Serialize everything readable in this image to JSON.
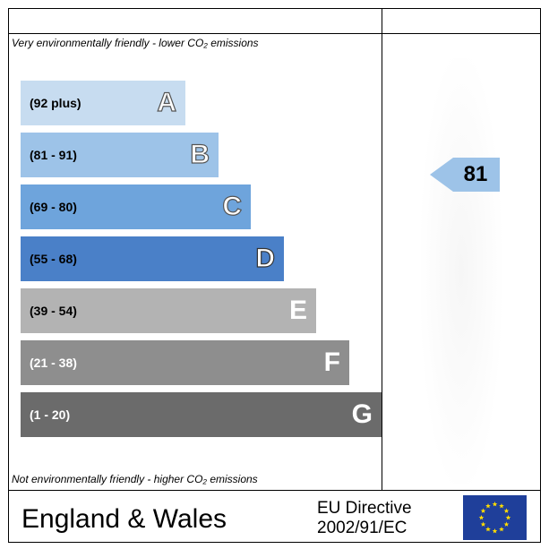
{
  "chart_data": {
    "type": "bar",
    "title": "",
    "top_caption": "Very environmentally friendly - lower CO₂ emissions",
    "bottom_caption": "Not environmentally friendly - higher CO₂ emissions",
    "bands": [
      {
        "letter": "A",
        "range": "(92 plus)",
        "min": 92,
        "max": 100,
        "color": "#c7dcf0",
        "text_color": "#000000"
      },
      {
        "letter": "B",
        "range": "(81 - 91)",
        "min": 81,
        "max": 91,
        "color": "#9dc3e8",
        "text_color": "#000000"
      },
      {
        "letter": "C",
        "range": "(69 - 80)",
        "min": 69,
        "max": 80,
        "color": "#6ea4dc",
        "text_color": "#000000"
      },
      {
        "letter": "D",
        "range": "(55 - 68)",
        "min": 55,
        "max": 68,
        "color": "#4a80c8",
        "text_color": "#000000"
      },
      {
        "letter": "E",
        "range": "(39 - 54)",
        "min": 39,
        "max": 54,
        "color": "#b3b3b3",
        "text_color": "#000000"
      },
      {
        "letter": "F",
        "range": "(21 - 38)",
        "min": 21,
        "max": 38,
        "color": "#8e8e8e",
        "text_color": "#ffffff"
      },
      {
        "letter": "G",
        "range": "(1 - 20)",
        "min": 1,
        "max": 20,
        "color": "#6b6b6b",
        "text_color": "#ffffff"
      }
    ],
    "current_rating": {
      "value": 81,
      "label": "81",
      "band": "B",
      "color": "#9dc3e8"
    }
  },
  "footer": {
    "region": "England & Wales",
    "directive_line1": "EU Directive",
    "directive_line2": "2002/91/EC"
  },
  "icons": {
    "flag": "eu-flag-icon"
  }
}
